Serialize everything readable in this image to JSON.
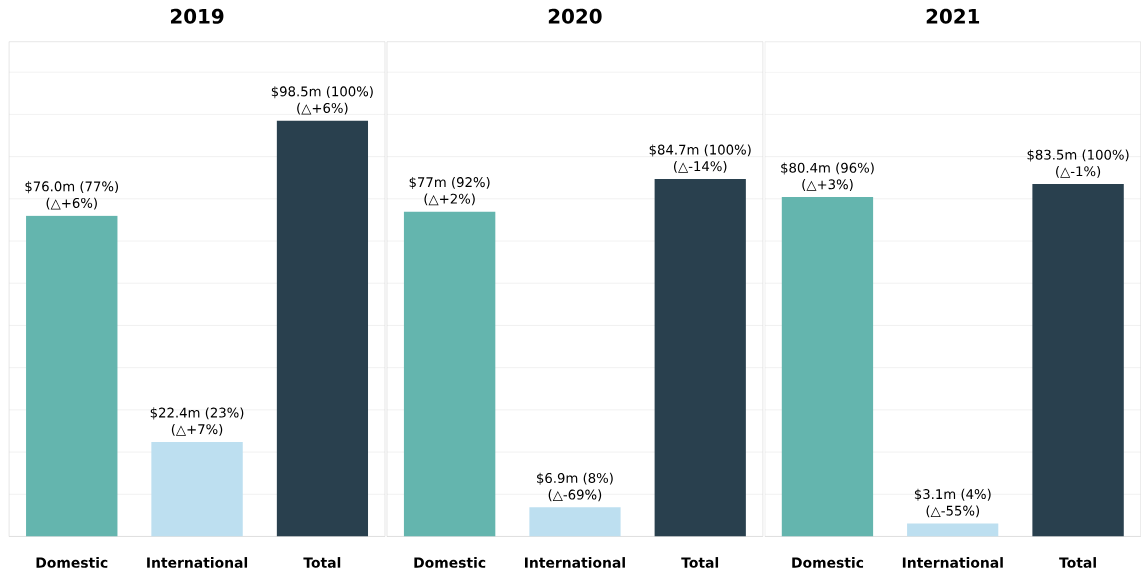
{
  "chart_data": [
    {
      "type": "bar",
      "title": "2019",
      "categories": [
        "Domestic",
        "International",
        "Total"
      ],
      "values": [
        76.0,
        22.4,
        98.5
      ],
      "colors": [
        "#64b5ae",
        "#bddff0",
        "#29404e"
      ],
      "value_labels": [
        "$76.0m",
        "$22.4m",
        "$98.5m"
      ],
      "annotations": [
        {
          "text": "(77%)",
          "x": "Domestic",
          "y": 76.0
        },
        {
          "text": "(△+6%)",
          "x": "Domestic",
          "y": 76.0
        },
        {
          "text": "(23%)",
          "x": "International",
          "y": 22.4
        },
        {
          "text": "(△+7%)",
          "x": "International",
          "y": 22.4
        },
        {
          "text": "(100%)",
          "x": "Total",
          "y": 98.5
        },
        {
          "text": "(△+6%)",
          "x": "Total",
          "y": 98.5
        }
      ],
      "grid": "y",
      "tick_labels": "x"
    },
    {
      "type": "bar",
      "title": "2020",
      "categories": [
        "Domestic",
        "International",
        "Total"
      ],
      "values": [
        77,
        6.9,
        84.7
      ],
      "colors": [
        "#64b5ae",
        "#bddff0",
        "#29404e"
      ],
      "value_labels": [
        "$77m",
        "$6.9m",
        "$84.7m"
      ],
      "annotations": [
        {
          "text": "(92%)",
          "x": "Domestic",
          "y": 77
        },
        {
          "text": "(△+2%)",
          "x": "Domestic",
          "y": 77
        },
        {
          "text": "(8%)",
          "x": "International",
          "y": 6.9
        },
        {
          "text": "(△-69%)",
          "x": "International",
          "y": 6.9
        },
        {
          "text": "(100%)",
          "x": "Total",
          "y": 84.7
        },
        {
          "text": "(△-14%)",
          "x": "Total",
          "y": 84.7
        }
      ],
      "grid": "y",
      "tick_labels": "x"
    },
    {
      "type": "bar",
      "title": "2021",
      "categories": [
        "Domestic",
        "International",
        "Total"
      ],
      "values": [
        80.4,
        3.1,
        83.5
      ],
      "colors": [
        "#64b5ae",
        "#bddff0",
        "#29404e"
      ],
      "value_labels": [
        "$80.4m",
        "$3.1m",
        "$83.5m"
      ],
      "annotations": [
        {
          "text": "(96%)",
          "x": "Domestic",
          "y": 80.4
        },
        {
          "text": "(△+3%)",
          "x": "Domestic",
          "y": 80.4
        },
        {
          "text": "(4%)",
          "x": "International",
          "y": 3.1
        },
        {
          "text": "(△-55%)",
          "x": "International",
          "y": 3.1
        },
        {
          "text": "(100%)",
          "x": "Total",
          "y": 83.5
        },
        {
          "text": "(△-1%)",
          "x": "Total",
          "y": 83.5
        }
      ],
      "grid": "y",
      "tick_labels": "x"
    }
  ]
}
